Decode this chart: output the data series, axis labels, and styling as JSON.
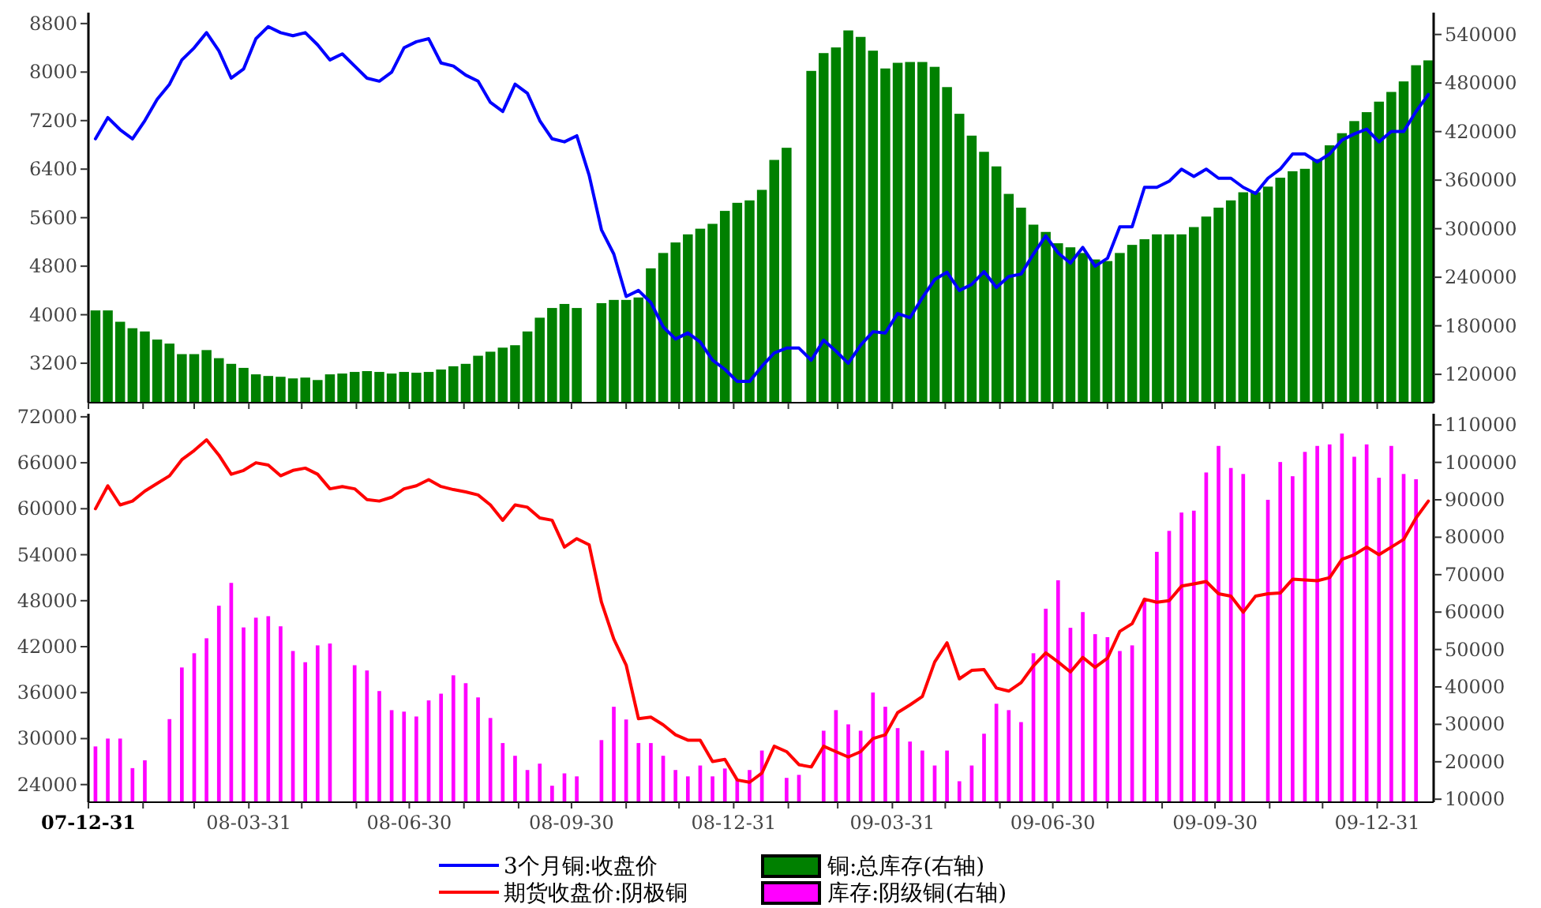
{
  "chart_data": [
    {
      "type": "line",
      "xlim": [
        "2007-12-31",
        "2010-02-01"
      ],
      "x": [
        "2008-01-04",
        "2008-01-11",
        "2008-01-18",
        "2008-01-25",
        "2008-02-01",
        "2008-02-08",
        "2008-02-15",
        "2008-02-22",
        "2008-02-29",
        "2008-03-07",
        "2008-03-14",
        "2008-03-21",
        "2008-03-28",
        "2008-04-04",
        "2008-04-11",
        "2008-04-18",
        "2008-04-25",
        "2008-05-02",
        "2008-05-09",
        "2008-05-16",
        "2008-05-23",
        "2008-05-30",
        "2008-06-06",
        "2008-06-13",
        "2008-06-20",
        "2008-06-27",
        "2008-07-04",
        "2008-07-11",
        "2008-07-18",
        "2008-07-25",
        "2008-08-01",
        "2008-08-08",
        "2008-08-15",
        "2008-08-22",
        "2008-08-29",
        "2008-09-05",
        "2008-09-12",
        "2008-09-19",
        "2008-09-26",
        "2008-10-03",
        "2008-10-10",
        "2008-10-17",
        "2008-10-24",
        "2008-10-31",
        "2008-11-07",
        "2008-11-14",
        "2008-11-21",
        "2008-11-28",
        "2008-12-05",
        "2008-12-12",
        "2008-12-19",
        "2008-12-26",
        "2009-01-02",
        "2009-01-09",
        "2009-01-16",
        "2009-01-23",
        "2009-01-30",
        "2009-02-06",
        "2009-02-13",
        "2009-02-20",
        "2009-02-27",
        "2009-03-06",
        "2009-03-13",
        "2009-03-20",
        "2009-03-27",
        "2009-04-03",
        "2009-04-10",
        "2009-04-17",
        "2009-04-24",
        "2009-05-01",
        "2009-05-08",
        "2009-05-15",
        "2009-05-22",
        "2009-05-29",
        "2009-06-05",
        "2009-06-12",
        "2009-06-19",
        "2009-06-26",
        "2009-07-03",
        "2009-07-10",
        "2009-07-17",
        "2009-07-24",
        "2009-07-31",
        "2009-08-07",
        "2009-08-14",
        "2009-08-21",
        "2009-08-28",
        "2009-09-04",
        "2009-09-11",
        "2009-09-18",
        "2009-09-25",
        "2009-10-02",
        "2009-10-09",
        "2009-10-16",
        "2009-10-23",
        "2009-10-30",
        "2009-11-06",
        "2009-11-13",
        "2009-11-20",
        "2009-11-27",
        "2009-12-04",
        "2009-12-11",
        "2009-12-18",
        "2009-12-25",
        "2010-01-01",
        "2010-01-08",
        "2010-01-15",
        "2010-01-22",
        "2010-01-29"
      ],
      "xticks": [
        {
          "value": "2007-12-31",
          "label": null
        },
        {
          "value": "2008-01-31",
          "label": null
        },
        {
          "value": "2008-02-29",
          "label": null
        },
        {
          "value": "2008-03-31",
          "label": null
        },
        {
          "value": "2008-04-30",
          "label": null
        },
        {
          "value": "2008-05-31",
          "label": null
        },
        {
          "value": "2008-06-30",
          "label": null
        },
        {
          "value": "2008-07-31",
          "label": null
        },
        {
          "value": "2008-08-31",
          "label": null
        },
        {
          "value": "2008-09-30",
          "label": null
        },
        {
          "value": "2008-10-31",
          "label": null
        },
        {
          "value": "2008-11-30",
          "label": null
        },
        {
          "value": "2008-12-31",
          "label": null
        },
        {
          "value": "2009-01-31",
          "label": null
        },
        {
          "value": "2009-02-28",
          "label": null
        },
        {
          "value": "2009-03-31",
          "label": null
        },
        {
          "value": "2009-04-30",
          "label": null
        },
        {
          "value": "2009-05-31",
          "label": null
        },
        {
          "value": "2009-06-30",
          "label": null
        },
        {
          "value": "2009-07-31",
          "label": null
        },
        {
          "value": "2009-08-31",
          "label": null
        },
        {
          "value": "2009-09-30",
          "label": null
        },
        {
          "value": "2009-10-31",
          "label": null
        },
        {
          "value": "2009-11-30",
          "label": null
        },
        {
          "value": "2009-12-31",
          "label": null
        }
      ],
      "ylim": [
        2550,
        8980
      ],
      "yticks": [
        3200,
        4000,
        4800,
        5600,
        6400,
        7200,
        8000,
        8800
      ],
      "y2lim": [
        85000,
        567000
      ],
      "y2ticks": [
        120000,
        180000,
        240000,
        300000,
        360000,
        420000,
        480000,
        540000
      ],
      "tick_labels": "y",
      "legend": "bottom",
      "series": [
        {
          "name": "3个月铜:收盘价",
          "color": "#0000ff",
          "values": [
            6900,
            7250,
            7050,
            6900,
            7200,
            7550,
            7800,
            8200,
            8400,
            8650,
            8350,
            7900,
            8050,
            8550,
            8750,
            8650,
            8600,
            8650,
            8450,
            8200,
            8300,
            8100,
            7900,
            7850,
            8000,
            8400,
            8500,
            8550,
            8150,
            8100,
            7950,
            7850,
            7500,
            7350,
            7800,
            7650,
            7200,
            6900,
            6850,
            6950,
            6300,
            5400,
            5000,
            4300,
            4400,
            4200,
            3800,
            3600,
            3700,
            3550,
            3250,
            3100,
            2900,
            2900,
            3150,
            3370,
            3450,
            3450,
            3250,
            3580,
            3400,
            3200,
            3500,
            3720,
            3700,
            4020,
            3950,
            4280,
            4580,
            4700,
            4400,
            4500,
            4710,
            4450,
            4630,
            4670,
            5000,
            5300,
            5020,
            4850,
            5110,
            4800,
            4930,
            5450,
            5450,
            6100,
            6100,
            6200,
            6400,
            6280,
            6400,
            6250,
            6250,
            6100,
            6000,
            6250,
            6400,
            6650,
            6650,
            6520,
            6650,
            6880,
            6980,
            7060,
            6850,
            7020,
            7020,
            7350,
            7630
          ]
        },
        {
          "name": "铜:总库存(右轴)",
          "type": "bar",
          "axis": "y2",
          "color": "#008000",
          "values": [
            199000,
            199000,
            185000,
            177000,
            173000,
            163000,
            158000,
            145000,
            145000,
            150000,
            140000,
            133000,
            128000,
            120000,
            118000,
            117000,
            115000,
            116000,
            113000,
            120000,
            121000,
            123000,
            124000,
            123000,
            121000,
            123000,
            122000,
            123000,
            126000,
            130000,
            133000,
            143000,
            148000,
            153000,
            156000,
            173000,
            190000,
            202000,
            207000,
            202000,
            null,
            208000,
            212000,
            212000,
            215000,
            251000,
            270000,
            283000,
            293000,
            300000,
            306000,
            322000,
            332000,
            335000,
            348000,
            385000,
            400000,
            null,
            495000,
            517000,
            524000,
            545000,
            537000,
            520000,
            498000,
            505000,
            506000,
            506000,
            500000,
            475000,
            442000,
            415000,
            395000,
            377000,
            343000,
            326000,
            305000,
            296000,
            282000,
            277000,
            270000,
            262000,
            260000,
            270000,
            280000,
            287000,
            293000,
            293000,
            293000,
            302000,
            315000,
            326000,
            335000,
            345000,
            345000,
            352000,
            363000,
            371000,
            374000,
            386000,
            403000,
            418000,
            433000,
            444000,
            457000,
            469000,
            482000,
            502000,
            508000
          ]
        }
      ]
    },
    {
      "type": "line",
      "xlim": [
        "2007-12-31",
        "2010-02-01"
      ],
      "x": [
        "2008-01-04",
        "2008-01-11",
        "2008-01-18",
        "2008-01-25",
        "2008-02-01",
        "2008-02-08",
        "2008-02-15",
        "2008-02-22",
        "2008-02-29",
        "2008-03-07",
        "2008-03-14",
        "2008-03-21",
        "2008-03-28",
        "2008-04-04",
        "2008-04-11",
        "2008-04-18",
        "2008-04-25",
        "2008-05-02",
        "2008-05-09",
        "2008-05-16",
        "2008-05-23",
        "2008-05-30",
        "2008-06-06",
        "2008-06-13",
        "2008-06-20",
        "2008-06-27",
        "2008-07-04",
        "2008-07-11",
        "2008-07-18",
        "2008-07-25",
        "2008-08-01",
        "2008-08-08",
        "2008-08-15",
        "2008-08-22",
        "2008-08-29",
        "2008-09-05",
        "2008-09-12",
        "2008-09-19",
        "2008-09-26",
        "2008-10-03",
        "2008-10-10",
        "2008-10-17",
        "2008-10-24",
        "2008-10-31",
        "2008-11-07",
        "2008-11-14",
        "2008-11-21",
        "2008-11-28",
        "2008-12-05",
        "2008-12-12",
        "2008-12-19",
        "2008-12-26",
        "2009-01-02",
        "2009-01-09",
        "2009-01-16",
        "2009-01-23",
        "2009-01-30",
        "2009-02-06",
        "2009-02-13",
        "2009-02-20",
        "2009-02-27",
        "2009-03-06",
        "2009-03-13",
        "2009-03-20",
        "2009-03-27",
        "2009-04-03",
        "2009-04-10",
        "2009-04-17",
        "2009-04-24",
        "2009-05-01",
        "2009-05-08",
        "2009-05-15",
        "2009-05-22",
        "2009-05-29",
        "2009-06-05",
        "2009-06-12",
        "2009-06-19",
        "2009-06-26",
        "2009-07-03",
        "2009-07-10",
        "2009-07-17",
        "2009-07-24",
        "2009-07-31",
        "2009-08-07",
        "2009-08-14",
        "2009-08-21",
        "2009-08-28",
        "2009-09-04",
        "2009-09-11",
        "2009-09-18",
        "2009-09-25",
        "2009-10-02",
        "2009-10-09",
        "2009-10-16",
        "2009-10-23",
        "2009-10-30",
        "2009-11-06",
        "2009-11-13",
        "2009-11-20",
        "2009-11-27",
        "2009-12-04",
        "2009-12-11",
        "2009-12-18",
        "2009-12-25",
        "2010-01-01",
        "2010-01-08",
        "2010-01-15",
        "2010-01-22",
        "2010-01-29"
      ],
      "xticks": [
        {
          "value": "2007-12-31",
          "label": "07-12-31"
        },
        {
          "value": "2008-01-31",
          "label": null
        },
        {
          "value": "2008-02-29",
          "label": null
        },
        {
          "value": "2008-03-31",
          "label": "08-03-31"
        },
        {
          "value": "2008-04-30",
          "label": null
        },
        {
          "value": "2008-05-31",
          "label": null
        },
        {
          "value": "2008-06-30",
          "label": "08-06-30"
        },
        {
          "value": "2008-07-31",
          "label": null
        },
        {
          "value": "2008-08-31",
          "label": null
        },
        {
          "value": "2008-09-30",
          "label": "08-09-30"
        },
        {
          "value": "2008-10-31",
          "label": null
        },
        {
          "value": "2008-11-30",
          "label": null
        },
        {
          "value": "2008-12-31",
          "label": "08-12-31"
        },
        {
          "value": "2009-01-31",
          "label": null
        },
        {
          "value": "2009-02-28",
          "label": null
        },
        {
          "value": "2009-03-31",
          "label": "09-03-31"
        },
        {
          "value": "2009-04-30",
          "label": null
        },
        {
          "value": "2009-05-31",
          "label": null
        },
        {
          "value": "2009-06-30",
          "label": "09-06-30"
        },
        {
          "value": "2009-07-31",
          "label": null
        },
        {
          "value": "2009-08-31",
          "label": null
        },
        {
          "value": "2009-09-30",
          "label": "09-09-30"
        },
        {
          "value": "2009-10-31",
          "label": null
        },
        {
          "value": "2009-11-30",
          "label": null
        },
        {
          "value": "2009-12-31",
          "label": "09-12-31"
        }
      ],
      "ylim": [
        21700,
        72400
      ],
      "yticks": [
        24000,
        30000,
        36000,
        42000,
        48000,
        54000,
        60000,
        66000,
        72000
      ],
      "y2lim": [
        9200,
        113000
      ],
      "y2ticks": [
        10000,
        20000,
        30000,
        40000,
        50000,
        60000,
        70000,
        80000,
        90000,
        100000,
        110000
      ],
      "legend": "bottom",
      "series": [
        {
          "name": "期货收盘价:阴极铜",
          "color": "#ff0000",
          "values": [
            60000,
            63000,
            60500,
            61000,
            62300,
            63300,
            64300,
            66400,
            67600,
            69000,
            67000,
            64500,
            65000,
            66000,
            65700,
            64300,
            65000,
            65300,
            64500,
            62600,
            62900,
            62600,
            61200,
            61000,
            61500,
            62600,
            63000,
            63800,
            62900,
            62500,
            62200,
            61800,
            60500,
            58500,
            60500,
            60200,
            58800,
            58500,
            55000,
            56100,
            55300,
            47800,
            43000,
            39600,
            32600,
            32800,
            31800,
            30500,
            29800,
            29800,
            27000,
            27300,
            24600,
            24300,
            25500,
            29000,
            28300,
            26600,
            26300,
            29000,
            28300,
            27600,
            28300,
            30000,
            30500,
            33400,
            34400,
            35500,
            40000,
            42500,
            37800,
            38900,
            39000,
            36600,
            36200,
            37300,
            39500,
            41200,
            40000,
            38700,
            40600,
            39300,
            40500,
            44000,
            45000,
            48200,
            47800,
            48000,
            49900,
            50200,
            50500,
            48900,
            48600,
            46500,
            48600,
            48900,
            49000,
            50800,
            50700,
            50600,
            51000,
            53400,
            54000,
            55000,
            54000,
            55000,
            56000,
            58800,
            61000
          ]
        },
        {
          "name": "库存:阴级铜(右轴)",
          "type": "bar",
          "axis": "y2",
          "color": "#ff00ff",
          "values": [
            24100,
            26200,
            26200,
            18300,
            20400,
            null,
            31400,
            45200,
            49000,
            53000,
            61700,
            67800,
            55900,
            58500,
            58900,
            56200,
            49600,
            46600,
            51100,
            51600,
            null,
            45800,
            44400,
            38900,
            33800,
            33400,
            32100,
            36400,
            38200,
            43100,
            41000,
            37200,
            31700,
            25000,
            21600,
            17800,
            19500,
            13600,
            16900,
            16100,
            null,
            25800,
            34700,
            31300,
            25000,
            25000,
            21600,
            17800,
            16100,
            19000,
            16100,
            18200,
            15200,
            17800,
            23000,
            null,
            15700,
            16500,
            null,
            28300,
            33800,
            30000,
            28300,
            38500,
            34700,
            29000,
            25400,
            23000,
            19000,
            23000,
            14800,
            19000,
            27500,
            35500,
            33800,
            30600,
            49000,
            60900,
            68500,
            55800,
            60000,
            54100,
            53300,
            49600,
            51100,
            63600,
            76100,
            81700,
            86600,
            87100,
            97300,
            104400,
            98500,
            96900,
            null,
            90000,
            100100,
            96300,
            102800,
            104400,
            104800,
            107700,
            101500,
            104800,
            95900,
            104400,
            96900,
            95500,
            null
          ]
        }
      ]
    }
  ]
}
